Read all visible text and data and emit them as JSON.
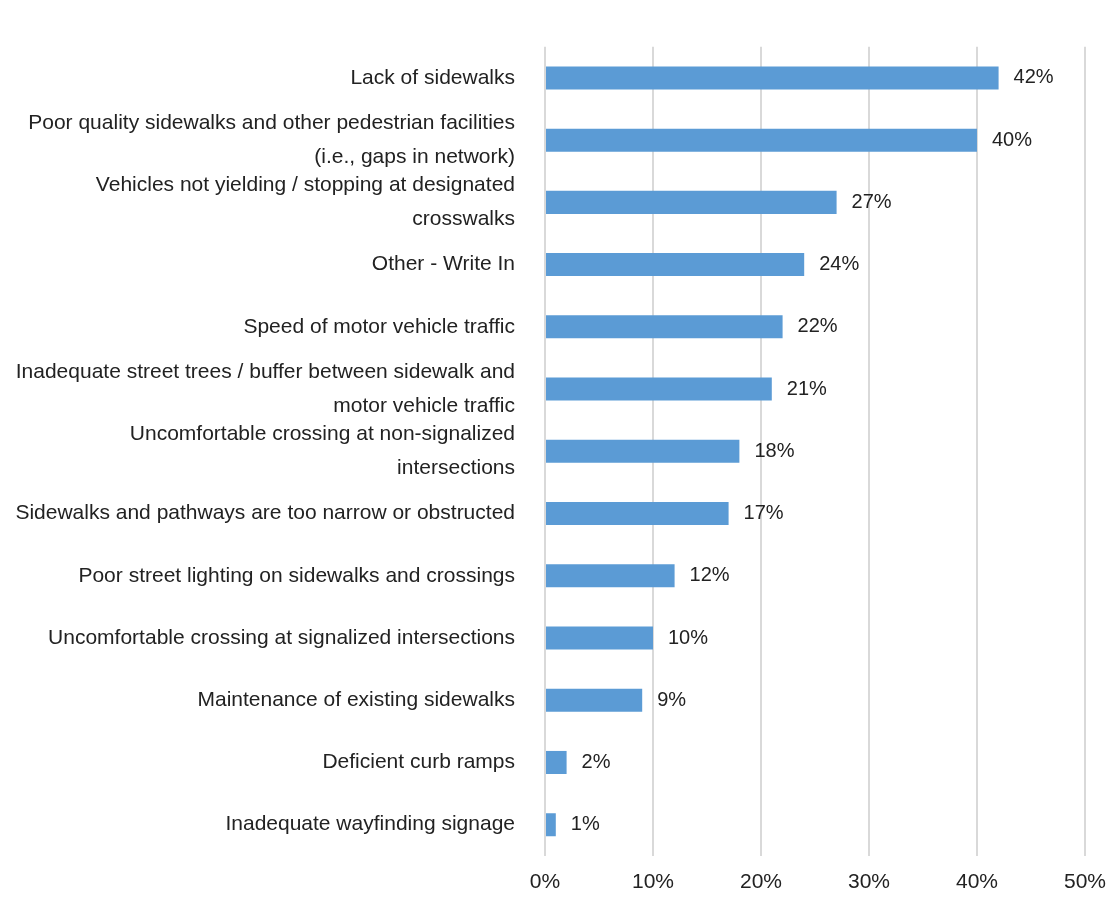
{
  "chart_data": {
    "type": "bar",
    "orientation": "horizontal",
    "categories": [
      "Lack of sidewalks",
      "Poor quality sidewalks and other pedestrian facilities (i.e., gaps in network)",
      "Vehicles not yielding / stopping at designated crosswalks",
      "Other - Write In",
      "Speed of motor vehicle traffic",
      "Inadequate street trees / buffer between sidewalk and motor vehicle traffic",
      "Uncomfortable crossing at non-signalized intersections",
      "Sidewalks and pathways are too narrow or obstructed",
      "Poor street lighting on sidewalks and crossings",
      "Uncomfortable crossing at signalized intersections",
      "Maintenance of existing sidewalks",
      "Deficient curb ramps",
      "Inadequate wayfinding signage"
    ],
    "values": [
      42,
      40,
      27,
      24,
      22,
      21,
      18,
      17,
      12,
      10,
      9,
      2,
      1
    ],
    "value_labels": [
      "42%",
      "40%",
      "27%",
      "24%",
      "22%",
      "21%",
      "18%",
      "17%",
      "12%",
      "10%",
      "9%",
      "2%",
      "1%"
    ],
    "color": "#5b9bd5",
    "xlim": [
      0,
      50
    ],
    "xticks": [
      {
        "value": 0,
        "label": "0%"
      },
      {
        "value": 10,
        "label": "10%"
      },
      {
        "value": 20,
        "label": "20%"
      },
      {
        "value": 30,
        "label": "30%"
      },
      {
        "value": 40,
        "label": "40%"
      },
      {
        "value": 50,
        "label": "50%"
      }
    ],
    "grid": "x",
    "legend": false
  }
}
